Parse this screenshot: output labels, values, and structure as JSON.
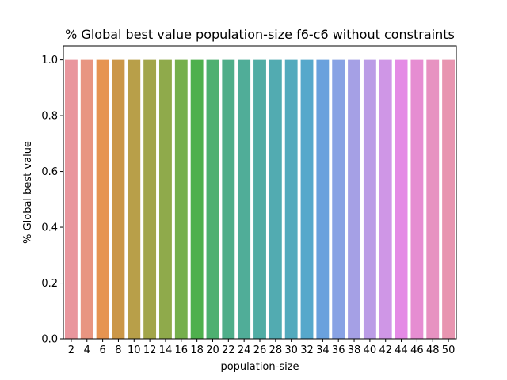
{
  "chart_data": {
    "type": "bar",
    "title": "% Global best value population-size f6-c6 without constraints",
    "xlabel": "population-size",
    "ylabel": "% Global best value",
    "categories": [
      "2",
      "4",
      "6",
      "8",
      "10",
      "12",
      "14",
      "16",
      "18",
      "20",
      "22",
      "24",
      "26",
      "28",
      "30",
      "32",
      "34",
      "36",
      "38",
      "40",
      "42",
      "44",
      "46",
      "48",
      "50"
    ],
    "values": [
      1.0,
      1.0,
      1.0,
      1.0,
      1.0,
      1.0,
      1.0,
      1.0,
      1.0,
      1.0,
      1.0,
      1.0,
      1.0,
      1.0,
      1.0,
      1.0,
      1.0,
      1.0,
      1.0,
      1.0,
      1.0,
      1.0,
      1.0,
      1.0,
      1.0
    ],
    "ylim": [
      0,
      1.05
    ],
    "yticks": [
      "0.0",
      "0.2",
      "0.4",
      "0.6",
      "0.8",
      "1.0"
    ],
    "grid": false,
    "colors": [
      "#e9969d",
      "#e89581",
      "#e69451",
      "#cb9748",
      "#b89f49",
      "#a2a54a",
      "#8faa4b",
      "#75af4c",
      "#4eb04d",
      "#4eb071",
      "#4fae89",
      "#50ad98",
      "#51ada4",
      "#52abb1",
      "#53aabd",
      "#56a8cb",
      "#6aa1dd",
      "#88a2e4",
      "#a5a0e5",
      "#bb9ce6",
      "#cf96e6",
      "#e48ae5",
      "#e68dd2",
      "#e792c1",
      "#e895b0"
    ]
  }
}
